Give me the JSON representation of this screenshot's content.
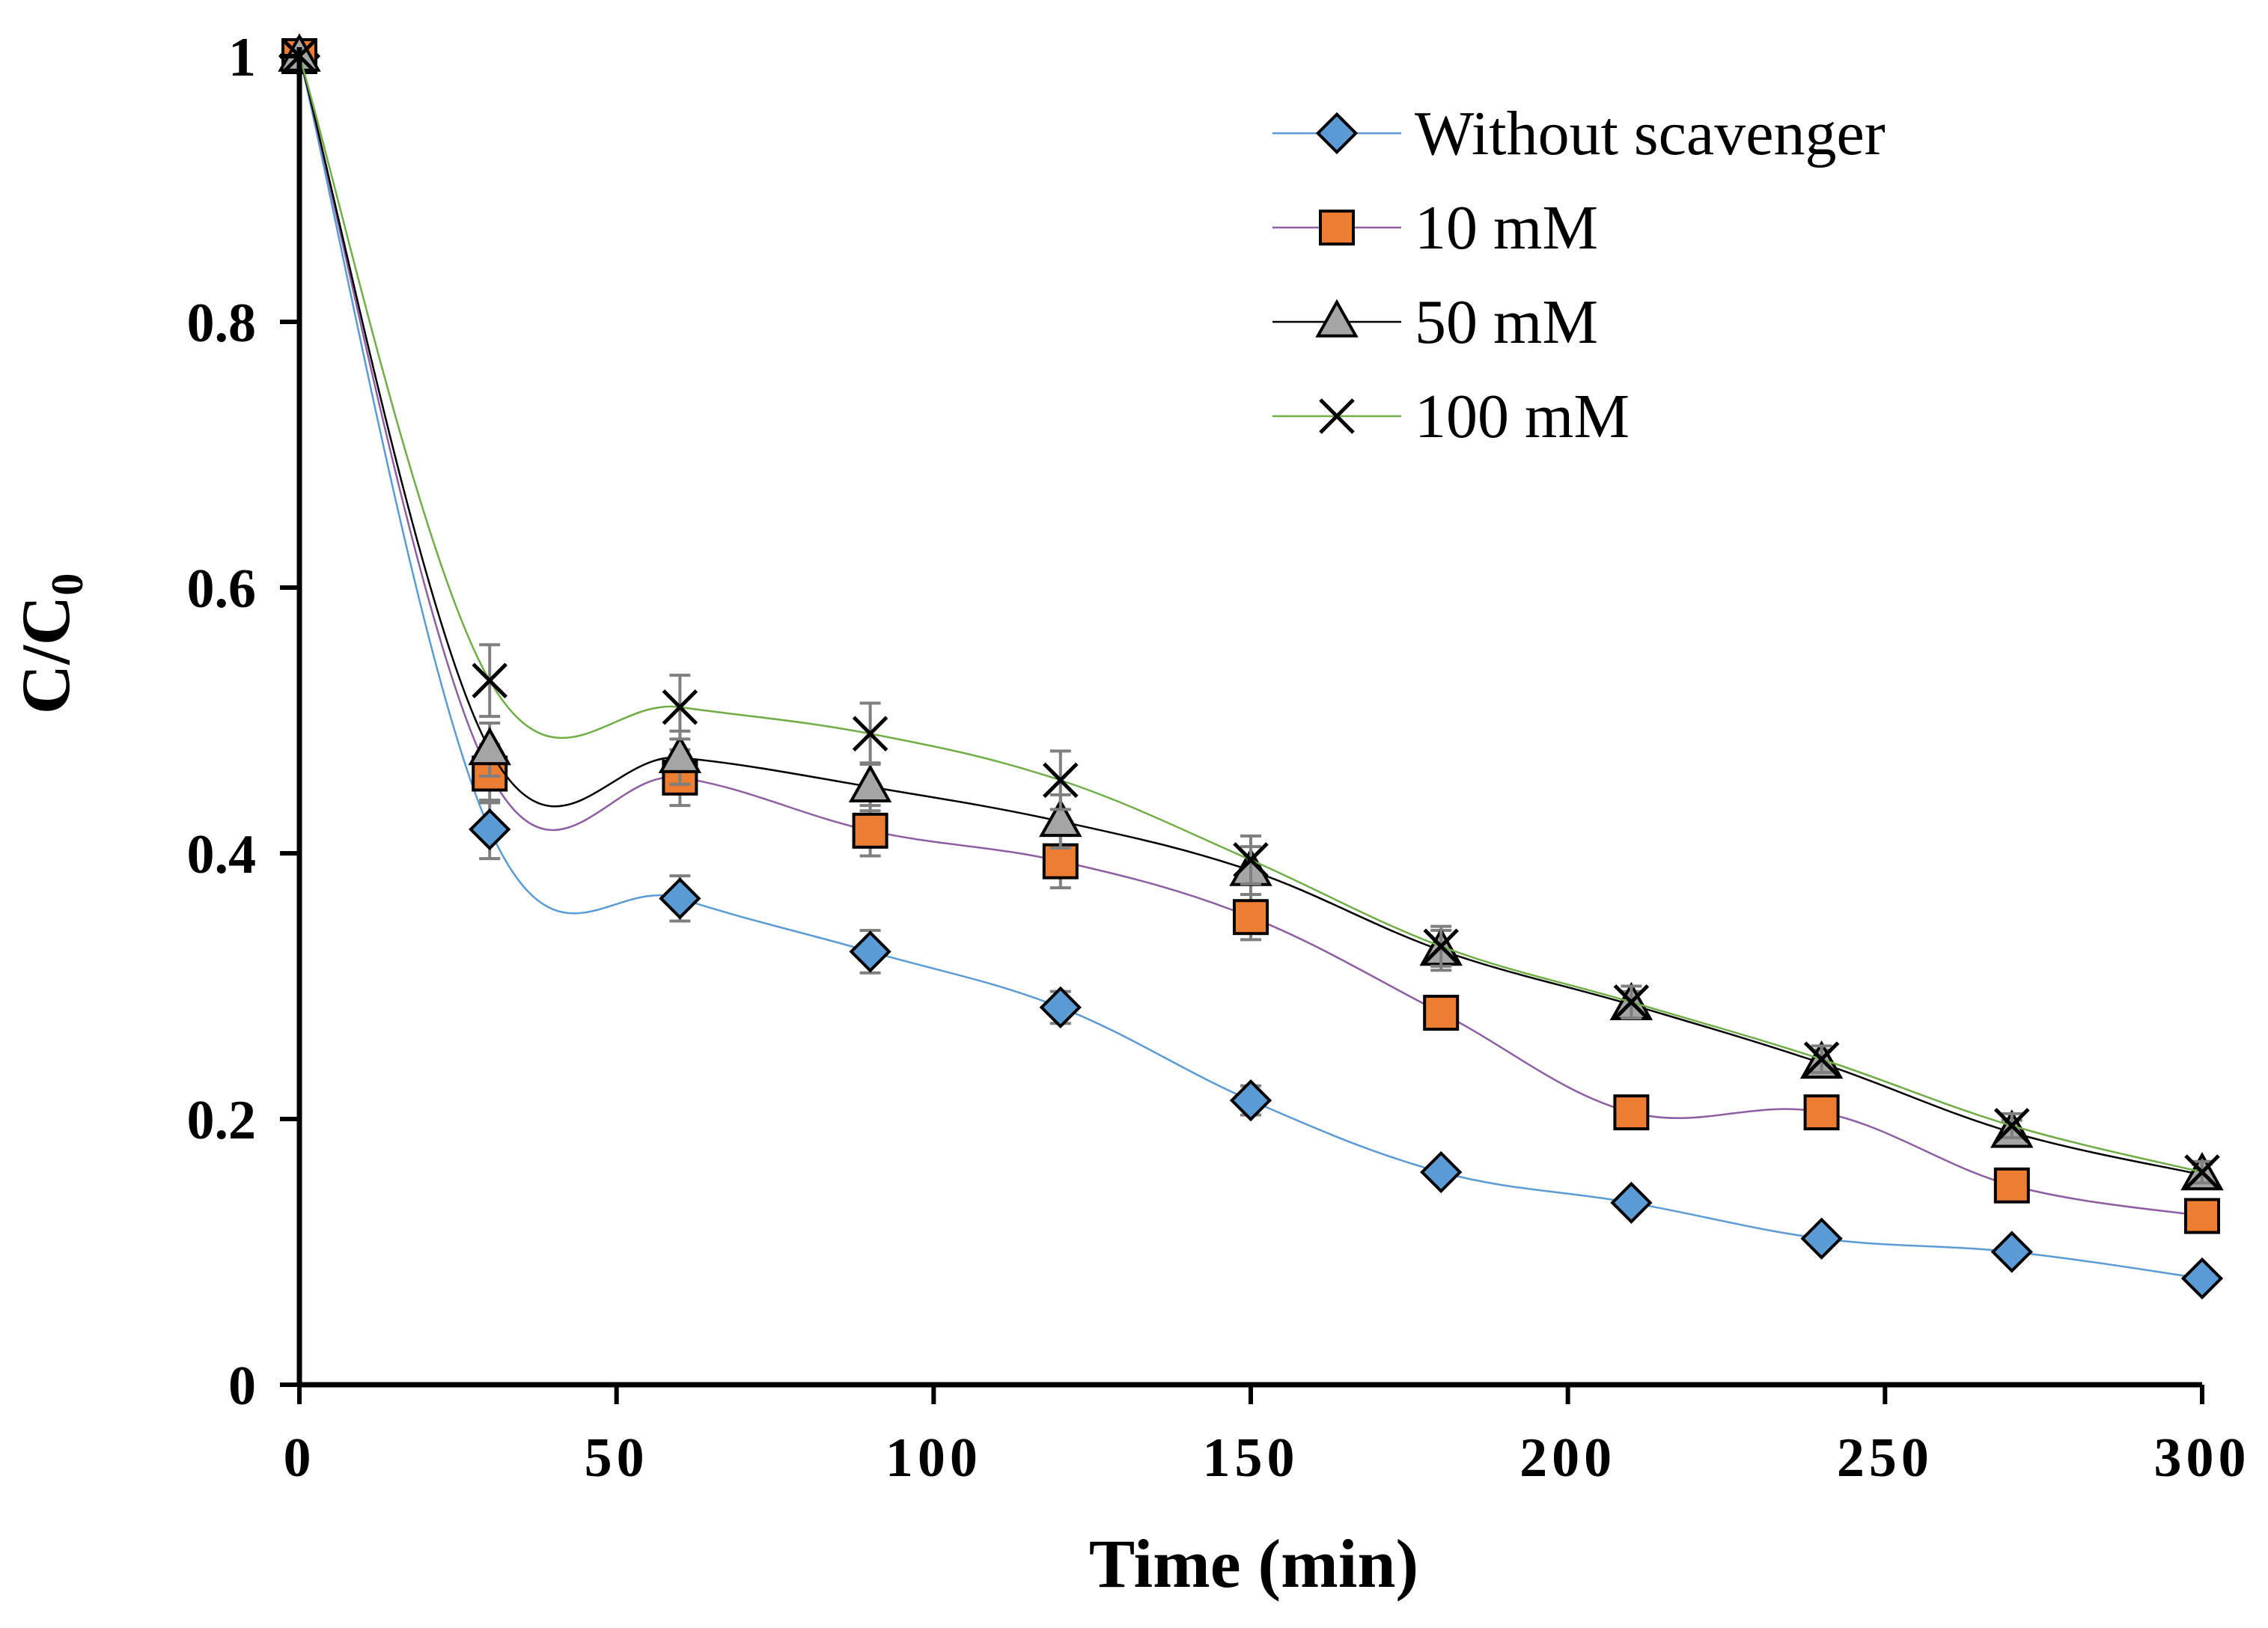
{
  "chart_data": {
    "type": "line",
    "xlabel": "Time (min)",
    "ylabel_main": "C/C",
    "ylabel_subscript": "0",
    "xlim": [
      0,
      300
    ],
    "ylim": [
      0,
      1
    ],
    "xticks": [
      0,
      50,
      100,
      150,
      200,
      250,
      300
    ],
    "yticks": [
      0,
      0.2,
      0.4,
      0.6,
      0.8,
      1
    ],
    "xtick_labels": [
      "0",
      "50",
      "100",
      "150",
      "200",
      "250",
      "300"
    ],
    "ytick_labels": [
      "0",
      "0.2",
      "0.4",
      "0.6",
      "0.8",
      "1"
    ],
    "grid": false,
    "legend_position": "top-right",
    "x": [
      0,
      30,
      60,
      90,
      120,
      150,
      180,
      210,
      240,
      270,
      300
    ],
    "series": [
      {
        "name": "Without scavenger",
        "marker": "diamond",
        "marker_color": "#5B9BD5",
        "line_color": "#5B9BD5",
        "values": [
          1,
          0.418,
          0.366,
          0.326,
          0.284,
          0.214,
          0.16,
          0.137,
          0.11,
          0.1,
          0.08
        ],
        "error": [
          0,
          0.022,
          0.017,
          0.016,
          0.012,
          0.011,
          0,
          0,
          0,
          0,
          0
        ]
      },
      {
        "name": "10 mM",
        "marker": "square",
        "marker_color": "#ED7D31",
        "line_color": "#8E5EA2",
        "values": [
          1,
          0.46,
          0.457,
          0.417,
          0.394,
          0.352,
          0.28,
          0.205,
          0.205,
          0.15,
          0.127
        ],
        "error": [
          0,
          0.022,
          0.021,
          0.019,
          0.02,
          0.017,
          0.012,
          0,
          0,
          0,
          0
        ]
      },
      {
        "name": "50 mM",
        "marker": "triangle",
        "marker_color": "#A5A5A5",
        "line_color": "#000000",
        "values": [
          1,
          0.478,
          0.472,
          0.45,
          0.424,
          0.387,
          0.327,
          0.286,
          0.242,
          0.19,
          0.158
        ],
        "error": [
          0,
          0.02,
          0.02,
          0.018,
          0.02,
          0.018,
          0.015,
          0.01,
          0.01,
          0.009,
          0.008
        ]
      },
      {
        "name": "100 mM",
        "marker": "x",
        "marker_color": "#000000",
        "line_color": "#70AD47",
        "values": [
          1,
          0.53,
          0.51,
          0.49,
          0.455,
          0.395,
          0.33,
          0.288,
          0.245,
          0.195,
          0.16
        ],
        "error": [
          0,
          0.027,
          0.024,
          0.023,
          0.022,
          0.018,
          0.015,
          0.012,
          0.01,
          0.009,
          0.008
        ]
      }
    ]
  }
}
